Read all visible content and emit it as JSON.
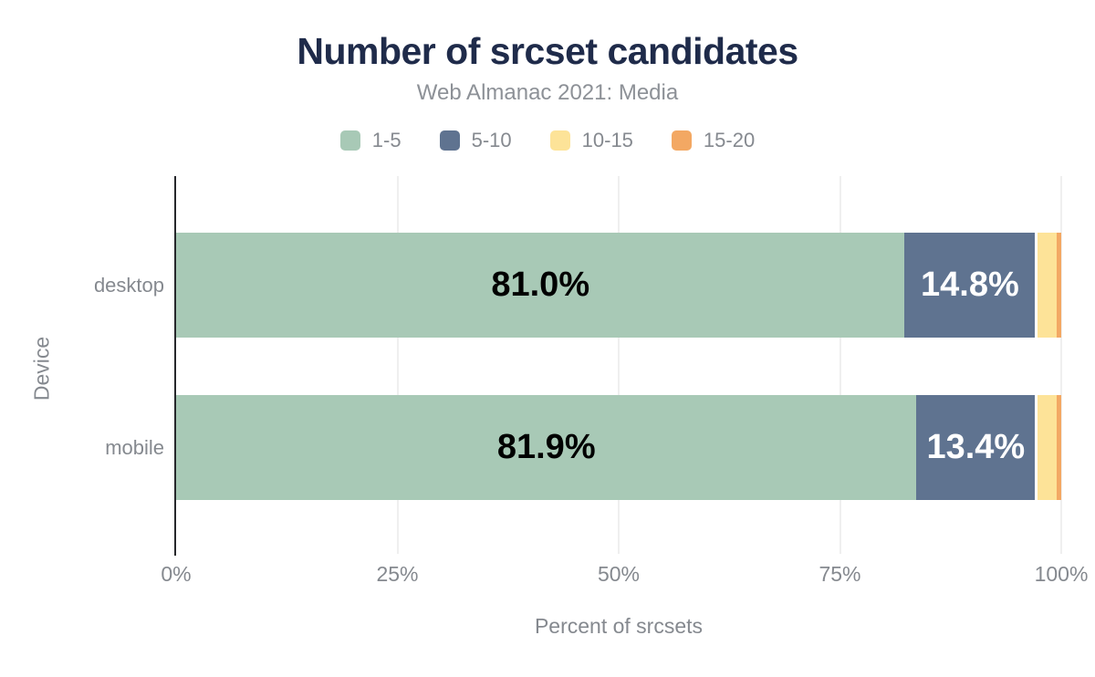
{
  "header": {
    "title": "Number of srcset candidates",
    "subtitle": "Web Almanac 2021: Media"
  },
  "colors": {
    "title_text": "#1f2b4a",
    "muted_text": "#85898f",
    "axis_line": "#26272b",
    "gridline": "#efefef",
    "background": "#ffffff",
    "bar_label_dark": "#000000",
    "bar_label_light": "#ffffff"
  },
  "legend": {
    "items": [
      {
        "label": "1-5",
        "color": "#a8c9b6"
      },
      {
        "label": "5-10",
        "color": "#5f7390"
      },
      {
        "label": "10-15",
        "color": "#fde398"
      },
      {
        "label": "15-20",
        "color": "#f3a863"
      }
    ]
  },
  "chart_data": {
    "type": "bar",
    "orientation": "horizontal-stacked",
    "title": "Number of srcset candidates",
    "subtitle": "Web Almanac 2021: Media",
    "xlabel": "Percent of srcsets",
    "ylabel": "Device",
    "xlim": [
      0,
      100
    ],
    "grid": "vertical",
    "legend_position": "top",
    "categories": [
      "desktop",
      "mobile"
    ],
    "series": [
      {
        "name": "1-5",
        "color": "#a8c9b6",
        "values": [
          81.0,
          81.9
        ],
        "labels": [
          "81.0%",
          "81.9%"
        ],
        "label_color": "#000000"
      },
      {
        "name": "5-10",
        "color": "#5f7390",
        "values": [
          14.8,
          13.4
        ],
        "labels": [
          "14.8%",
          "13.4%"
        ],
        "label_color": "#ffffff"
      },
      {
        "name": "10-15",
        "color": "#fde398",
        "values": [
          2.1,
          2.1
        ],
        "labels": [
          "",
          ""
        ],
        "label_color": "#000000"
      },
      {
        "name": "15-20",
        "color": "#f3a863",
        "values": [
          0.5,
          0.5
        ],
        "labels": [
          "",
          ""
        ],
        "label_color": "#000000"
      }
    ],
    "x_ticks": [
      {
        "label": "0%",
        "value": 0
      },
      {
        "label": "25%",
        "value": 25
      },
      {
        "label": "50%",
        "value": 50
      },
      {
        "label": "75%",
        "value": 75
      },
      {
        "label": "100%",
        "value": 100
      }
    ]
  }
}
